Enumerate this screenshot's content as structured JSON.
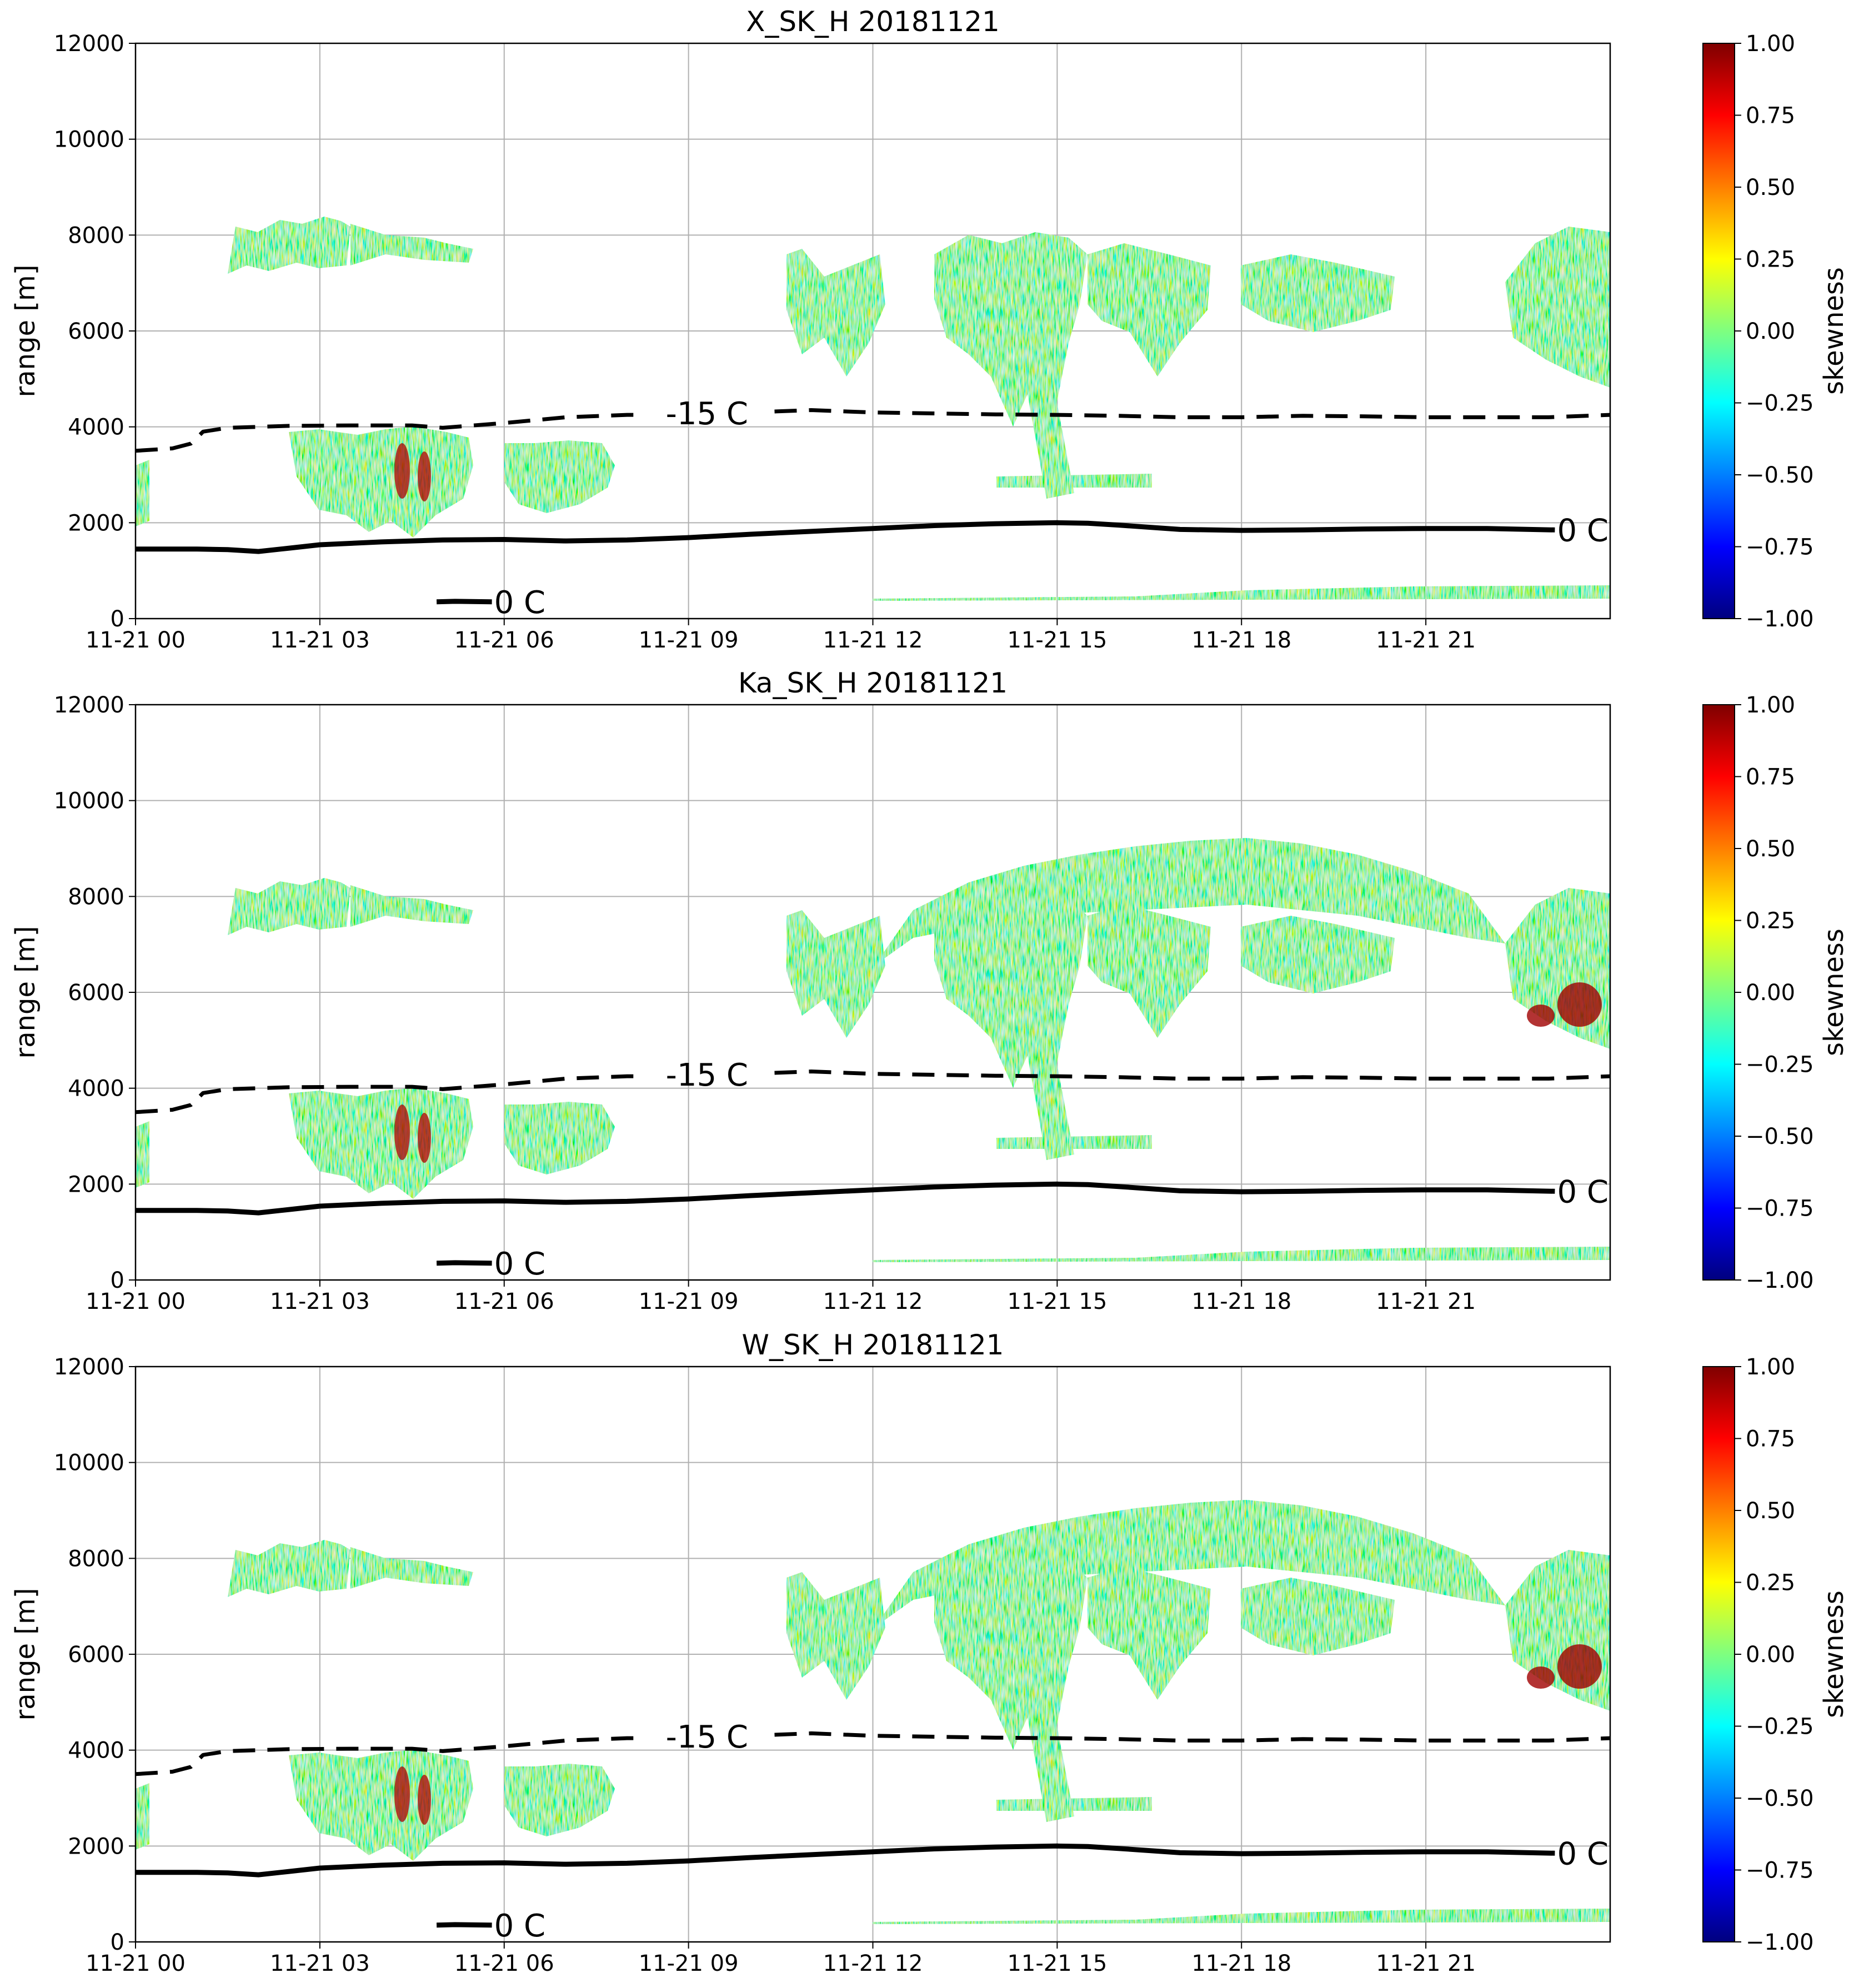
{
  "chart_data": [
    {
      "type": "line",
      "title": "X_SK_H 20181121",
      "ylabel": "range [m]",
      "xlim": [
        0,
        24
      ],
      "xticks": [
        {
          "value": 0,
          "label": "11-21 00"
        },
        {
          "value": 3,
          "label": "11-21 03"
        },
        {
          "value": 6,
          "label": "11-21 06"
        },
        {
          "value": 9,
          "label": "11-21 09"
        },
        {
          "value": 12,
          "label": "11-21 12"
        },
        {
          "value": 15,
          "label": "11-21 15"
        },
        {
          "value": 18,
          "label": "11-21 18"
        },
        {
          "value": 21,
          "label": "11-21 21"
        }
      ],
      "ylim": [
        0,
        12000
      ],
      "yticks": [
        0,
        2000,
        4000,
        6000,
        8000,
        10000,
        12000
      ],
      "grid": true,
      "series": [
        {
          "name": "-15 C",
          "color": "#000000",
          "style": "dashed",
          "x": [
            0,
            0.6,
            0.9,
            1.1,
            1.5,
            2.5,
            3.5,
            4.5,
            5,
            6,
            7,
            8,
            8.2,
            9.6,
            10.4,
            11,
            12,
            13,
            14,
            15,
            16,
            17,
            18,
            19,
            20,
            21,
            22,
            23,
            24
          ],
          "values": [
            3500,
            3550,
            3650,
            3900,
            3980,
            4020,
            4030,
            4030,
            3980,
            4080,
            4200,
            4250,
            4250,
            null,
            4320,
            4350,
            4300,
            4280,
            4260,
            4250,
            4230,
            4200,
            4200,
            4230,
            4220,
            4200,
            4200,
            4200,
            4250
          ]
        },
        {
          "name": "0 C",
          "color": "#000000",
          "style": "solid",
          "x": [
            0,
            1,
            1.5,
            2,
            2.5,
            3,
            4,
            5,
            6,
            7,
            8,
            9,
            10,
            11,
            12,
            13,
            14,
            15,
            15.5,
            16,
            17,
            18,
            19,
            20,
            21,
            22,
            23.1
          ],
          "values": [
            1450,
            1450,
            1440,
            1400,
            1470,
            1540,
            1600,
            1640,
            1650,
            1620,
            1640,
            1690,
            1760,
            1820,
            1880,
            1940,
            1980,
            2000,
            1990,
            1950,
            1860,
            1840,
            1850,
            1870,
            1880,
            1880,
            1850
          ]
        },
        {
          "name": "0 C",
          "color": "#000000",
          "style": "solid",
          "x": [
            4.9,
            5.2,
            5.8
          ],
          "values": [
            350,
            360,
            350
          ]
        }
      ],
      "colorbar": {
        "label": "skewness",
        "colormap": "jet",
        "lim": [
          -1,
          1
        ],
        "ticks": [
          {
            "value": -1,
            "label": "−1.00"
          },
          {
            "value": -0.75,
            "label": "−0.75"
          },
          {
            "value": -0.5,
            "label": "−0.50"
          },
          {
            "value": -0.25,
            "label": "−0.25"
          },
          {
            "value": 0,
            "label": "0.00"
          },
          0.25,
          {
            "value": 0.5,
            "label": "0.50"
          },
          0.75,
          {
            "value": 1,
            "label": "1.00"
          }
        ]
      }
    },
    {
      "type": "line",
      "title": "Ka_SK_H 20181121",
      "ylabel": "range [m]",
      "xlim": [
        0,
        24
      ],
      "xticks": [
        {
          "value": 0,
          "label": "11-21 00"
        },
        {
          "value": 3,
          "label": "11-21 03"
        },
        {
          "value": 6,
          "label": "11-21 06"
        },
        {
          "value": 9,
          "label": "11-21 09"
        },
        {
          "value": 12,
          "label": "11-21 12"
        },
        {
          "value": 15,
          "label": "11-21 15"
        },
        {
          "value": 18,
          "label": "11-21 18"
        },
        {
          "value": 21,
          "label": "11-21 21"
        }
      ],
      "ylim": [
        0,
        12000
      ],
      "yticks": [
        0,
        2000,
        4000,
        6000,
        8000,
        10000,
        12000
      ],
      "grid": true,
      "series": [
        {
          "name": "-15 C",
          "color": "#000000",
          "style": "dashed",
          "x": [
            0,
            0.6,
            0.9,
            1.1,
            1.5,
            2.5,
            3.5,
            4.5,
            5,
            6,
            7,
            8,
            8.2,
            9.6,
            10.4,
            11,
            12,
            13,
            14,
            15,
            16,
            17,
            18,
            19,
            20,
            21,
            22,
            23,
            24
          ],
          "values": [
            3500,
            3550,
            3650,
            3900,
            3980,
            4020,
            4030,
            4030,
            3980,
            4080,
            4200,
            4250,
            4250,
            null,
            4320,
            4350,
            4300,
            4280,
            4260,
            4250,
            4230,
            4200,
            4200,
            4230,
            4220,
            4200,
            4200,
            4200,
            4250
          ]
        },
        {
          "name": "0 C",
          "color": "#000000",
          "style": "solid",
          "x": [
            0,
            1,
            1.5,
            2,
            2.5,
            3,
            4,
            5,
            6,
            7,
            8,
            9,
            10,
            11,
            12,
            13,
            14,
            15,
            15.5,
            16,
            17,
            18,
            19,
            20,
            21,
            22,
            23.1
          ],
          "values": [
            1450,
            1450,
            1440,
            1400,
            1470,
            1540,
            1600,
            1640,
            1650,
            1620,
            1640,
            1690,
            1760,
            1820,
            1880,
            1940,
            1980,
            2000,
            1990,
            1950,
            1860,
            1840,
            1850,
            1870,
            1880,
            1880,
            1850
          ]
        },
        {
          "name": "0 C",
          "color": "#000000",
          "style": "solid",
          "x": [
            4.9,
            5.2,
            5.8
          ],
          "values": [
            350,
            360,
            350
          ]
        }
      ],
      "colorbar": {
        "label": "skewness",
        "colormap": "jet",
        "lim": [
          -1,
          1
        ],
        "ticks": [
          {
            "value": -1,
            "label": "−1.00"
          },
          {
            "value": -0.75,
            "label": "−0.75"
          },
          {
            "value": -0.5,
            "label": "−0.50"
          },
          {
            "value": -0.25,
            "label": "−0.25"
          },
          {
            "value": 0,
            "label": "0.00"
          },
          0.25,
          {
            "value": 0.5,
            "label": "0.50"
          },
          0.75,
          {
            "value": 1,
            "label": "1.00"
          }
        ]
      }
    },
    {
      "type": "line",
      "title": "W_SK_H 20181121",
      "ylabel": "range [m]",
      "xlim": [
        0,
        24
      ],
      "xticks": [
        {
          "value": 0,
          "label": "11-21 00"
        },
        {
          "value": 3,
          "label": "11-21 03"
        },
        {
          "value": 6,
          "label": "11-21 06"
        },
        {
          "value": 9,
          "label": "11-21 09"
        },
        {
          "value": 12,
          "label": "11-21 12"
        },
        {
          "value": 15,
          "label": "11-21 15"
        },
        {
          "value": 18,
          "label": "11-21 18"
        },
        {
          "value": 21,
          "label": "11-21 21"
        }
      ],
      "ylim": [
        0,
        12000
      ],
      "yticks": [
        0,
        2000,
        4000,
        6000,
        8000,
        10000,
        12000
      ],
      "grid": true,
      "series": [
        {
          "name": "-15 C",
          "color": "#000000",
          "style": "dashed",
          "x": [
            0,
            0.6,
            0.9,
            1.1,
            1.5,
            2.5,
            3.5,
            4.5,
            5,
            6,
            7,
            8,
            8.2,
            9.6,
            10.4,
            11,
            12,
            13,
            14,
            15,
            16,
            17,
            18,
            19,
            20,
            21,
            22,
            23,
            24
          ],
          "values": [
            3500,
            3550,
            3650,
            3900,
            3980,
            4020,
            4030,
            4030,
            3980,
            4080,
            4200,
            4250,
            4250,
            null,
            4320,
            4350,
            4300,
            4280,
            4260,
            4250,
            4230,
            4200,
            4200,
            4230,
            4220,
            4200,
            4200,
            4200,
            4250
          ]
        },
        {
          "name": "0 C",
          "color": "#000000",
          "style": "solid",
          "x": [
            0,
            1,
            1.5,
            2,
            2.5,
            3,
            4,
            5,
            6,
            7,
            8,
            9,
            10,
            11,
            12,
            13,
            14,
            15,
            15.5,
            16,
            17,
            18,
            19,
            20,
            21,
            22,
            23.1
          ],
          "values": [
            1450,
            1450,
            1440,
            1400,
            1470,
            1540,
            1600,
            1640,
            1650,
            1620,
            1640,
            1690,
            1760,
            1820,
            1880,
            1940,
            1980,
            2000,
            1990,
            1950,
            1860,
            1840,
            1850,
            1870,
            1880,
            1880,
            1850
          ]
        },
        {
          "name": "0 C",
          "color": "#000000",
          "style": "solid",
          "x": [
            4.9,
            5.2,
            5.8
          ],
          "values": [
            350,
            360,
            350
          ]
        }
      ],
      "colorbar": {
        "label": "skewness",
        "colormap": "jet",
        "lim": [
          -1,
          1
        ],
        "ticks": [
          {
            "value": -1,
            "label": "−1.00"
          },
          {
            "value": -0.75,
            "label": "−0.75"
          },
          {
            "value": -0.5,
            "label": "−0.50"
          },
          {
            "value": -0.25,
            "label": "−0.25"
          },
          {
            "value": 0,
            "label": "0.00"
          },
          0.25,
          {
            "value": 0.5,
            "label": "0.50"
          },
          0.75,
          {
            "value": 1,
            "label": "1.00"
          }
        ]
      }
    }
  ]
}
